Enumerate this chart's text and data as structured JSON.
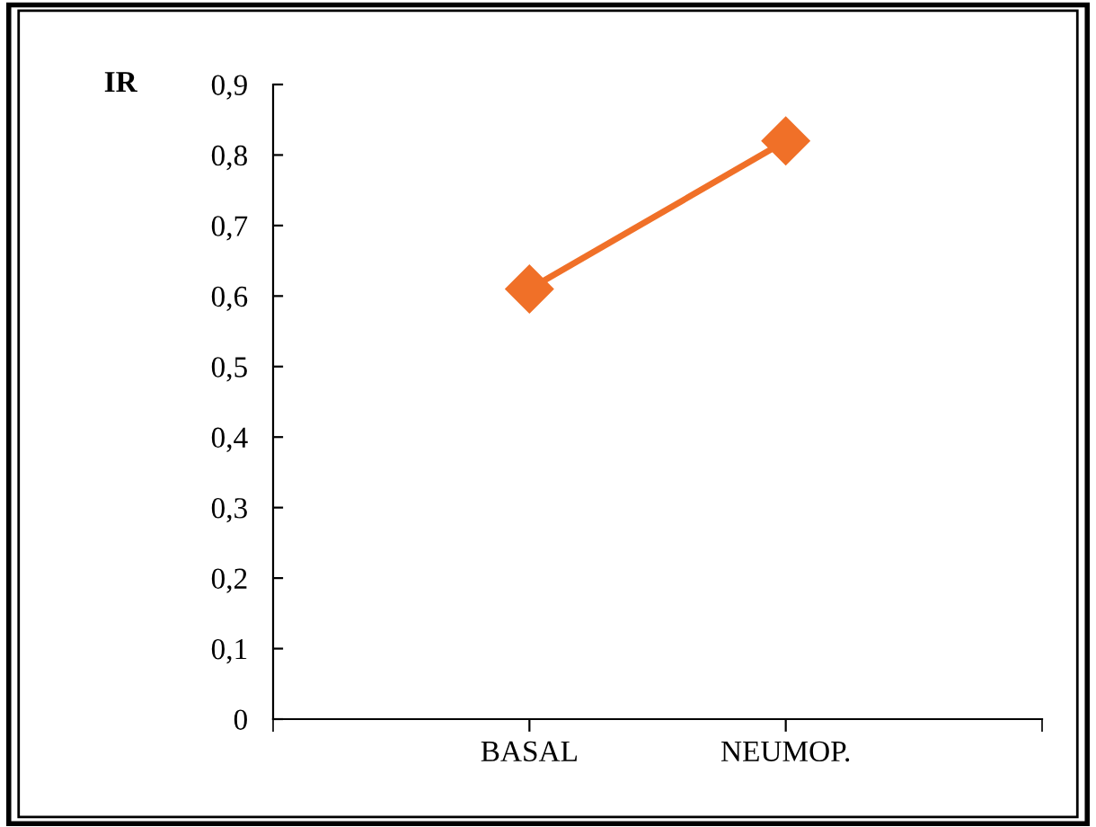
{
  "chart_data": {
    "type": "line",
    "ylabel": "IR",
    "categories": [
      "BASAL",
      "NEUMOP."
    ],
    "series": [
      {
        "color": "#f07028",
        "values": [
          0.61,
          0.82
        ]
      }
    ],
    "ylim": [
      0,
      0.9
    ],
    "yticks": [
      0,
      {
        "value": 0.1,
        "label": "0,1"
      },
      {
        "value": 0.2,
        "label": "0,2"
      },
      {
        "value": 0.3,
        "label": "0,3"
      },
      {
        "value": 0.4,
        "label": "0,4"
      },
      {
        "value": 0.5,
        "label": "0,5"
      },
      {
        "value": 0.6,
        "label": "0,6"
      },
      {
        "value": 0.7,
        "label": "0,7"
      },
      {
        "value": 0.8,
        "label": "0,8"
      },
      {
        "value": 0.9,
        "label": "0,9"
      }
    ],
    "marker": "diamond",
    "line_style": "solid",
    "grid": false,
    "legend": false
  }
}
